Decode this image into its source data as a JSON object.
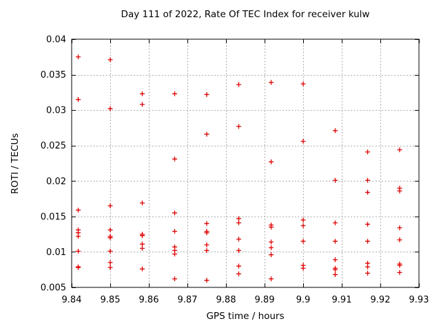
{
  "chart_data": {
    "type": "scatter",
    "title": "Day 111 of 2022, Rate Of TEC Index for receiver kulw",
    "xlabel": "GPS time / hours",
    "ylabel": "ROTI / TECUs",
    "xlim": [
      9.84,
      9.93
    ],
    "ylim": [
      0.005,
      0.04
    ],
    "xticks": [
      9.84,
      9.85,
      9.86,
      9.87,
      9.88,
      9.89,
      9.9,
      9.91,
      9.92,
      9.93
    ],
    "xtick_labels": [
      "9.84",
      "9.85",
      "9.86",
      "9.87",
      "9.88",
      "9.89",
      "9.9",
      "9.91",
      "9.92",
      "9.93"
    ],
    "yticks": [
      0.005,
      0.01,
      0.015,
      0.02,
      0.025,
      0.03,
      0.035,
      0.04
    ],
    "ytick_labels": [
      "0.005",
      "0.01",
      "0.015",
      "0.02",
      "0.025",
      "0.03",
      "0.035",
      "0.04"
    ],
    "grid": true,
    "legend": "none",
    "background_color": "#ffffff",
    "text_color": "#000000",
    "grid_color": "#a8a8a8",
    "marker": {
      "shape": "plus",
      "color": "#e00000",
      "size": 7
    },
    "series": [
      {
        "name": "ROTI",
        "points": [
          [
            9.8417,
            0.0375
          ],
          [
            9.8417,
            0.0315
          ],
          [
            9.8417,
            0.0159
          ],
          [
            9.8417,
            0.0131
          ],
          [
            9.8417,
            0.0127
          ],
          [
            9.8417,
            0.0122
          ],
          [
            9.8417,
            0.0101
          ],
          [
            9.8417,
            0.0079
          ],
          [
            9.8417,
            0.0078
          ],
          [
            9.85,
            0.0371
          ],
          [
            9.85,
            0.0302
          ],
          [
            9.85,
            0.0165
          ],
          [
            9.85,
            0.0131
          ],
          [
            9.85,
            0.0122
          ],
          [
            9.85,
            0.012
          ],
          [
            9.85,
            0.0101
          ],
          [
            9.85,
            0.0085
          ],
          [
            9.85,
            0.0078
          ],
          [
            9.8583,
            0.0323
          ],
          [
            9.8583,
            0.0308
          ],
          [
            9.8583,
            0.0169
          ],
          [
            9.8583,
            0.0125
          ],
          [
            9.8583,
            0.0123
          ],
          [
            9.8583,
            0.0111
          ],
          [
            9.8583,
            0.0105
          ],
          [
            9.8583,
            0.0076
          ],
          [
            9.8667,
            0.0323
          ],
          [
            9.8667,
            0.0231
          ],
          [
            9.8667,
            0.0155
          ],
          [
            9.8667,
            0.0129
          ],
          [
            9.8667,
            0.0107
          ],
          [
            9.8667,
            0.0102
          ],
          [
            9.8667,
            0.0097
          ],
          [
            9.8667,
            0.0062
          ],
          [
            9.875,
            0.0322
          ],
          [
            9.875,
            0.0266
          ],
          [
            9.875,
            0.014
          ],
          [
            9.875,
            0.0129
          ],
          [
            9.875,
            0.0127
          ],
          [
            9.875,
            0.011
          ],
          [
            9.875,
            0.0102
          ],
          [
            9.875,
            0.006
          ],
          [
            9.8833,
            0.0336
          ],
          [
            9.8833,
            0.0277
          ],
          [
            9.8833,
            0.0147
          ],
          [
            9.8833,
            0.0141
          ],
          [
            9.8833,
            0.0118
          ],
          [
            9.8833,
            0.0102
          ],
          [
            9.8833,
            0.008
          ],
          [
            9.8833,
            0.0069
          ],
          [
            9.8917,
            0.0339
          ],
          [
            9.8917,
            0.0227
          ],
          [
            9.8917,
            0.0138
          ],
          [
            9.8917,
            0.0135
          ],
          [
            9.8917,
            0.0114
          ],
          [
            9.8917,
            0.0106
          ],
          [
            9.8917,
            0.0096
          ],
          [
            9.8917,
            0.0062
          ],
          [
            9.9,
            0.0337
          ],
          [
            9.9,
            0.0256
          ],
          [
            9.9,
            0.0145
          ],
          [
            9.9,
            0.0137
          ],
          [
            9.9,
            0.0115
          ],
          [
            9.9,
            0.0081
          ],
          [
            9.9,
            0.0077
          ],
          [
            9.9083,
            0.0271
          ],
          [
            9.9083,
            0.0201
          ],
          [
            9.9083,
            0.0141
          ],
          [
            9.9083,
            0.0115
          ],
          [
            9.9083,
            0.0089
          ],
          [
            9.9083,
            0.0077
          ],
          [
            9.9083,
            0.0075
          ],
          [
            9.9083,
            0.0068
          ],
          [
            9.9167,
            0.0241
          ],
          [
            9.9167,
            0.0201
          ],
          [
            9.9167,
            0.0184
          ],
          [
            9.9167,
            0.0139
          ],
          [
            9.9167,
            0.0115
          ],
          [
            9.9167,
            0.0084
          ],
          [
            9.9167,
            0.0079
          ],
          [
            9.9167,
            0.007
          ],
          [
            9.925,
            0.0244
          ],
          [
            9.925,
            0.019
          ],
          [
            9.925,
            0.0186
          ],
          [
            9.925,
            0.0134
          ],
          [
            9.925,
            0.0117
          ],
          [
            9.925,
            0.0083
          ],
          [
            9.925,
            0.0081
          ],
          [
            9.925,
            0.0071
          ]
        ]
      }
    ]
  }
}
